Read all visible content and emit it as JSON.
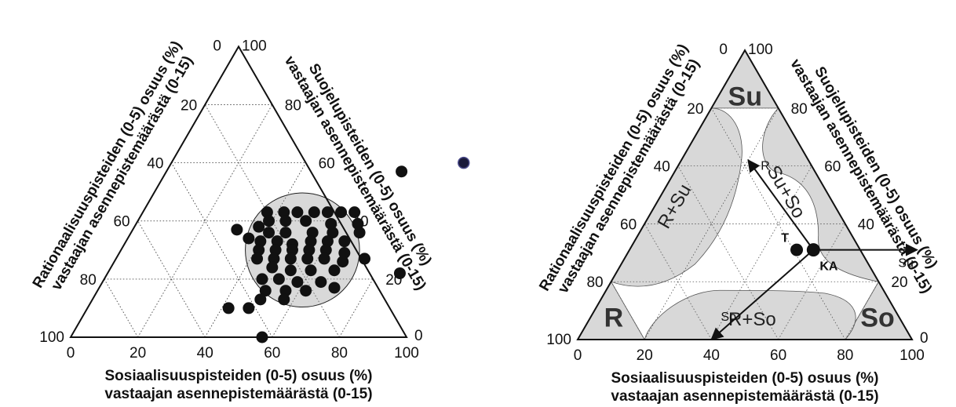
{
  "chart_data": [
    {
      "type": "ternary-scatter",
      "axes": {
        "bottom": {
          "title_line1": "Sosiaalisuuspisteiden (0-5) osuus (%)",
          "title_line2": "vastaajan asennepistemäärästä (0-15)",
          "ticks": [
            "0",
            "20",
            "40",
            "60",
            "80",
            "100"
          ]
        },
        "right": {
          "title_line1": "Suojelupisteiden (0-5) osuus (%)",
          "title_line2": "vastaajan asennepistemäärästä (0-15)",
          "ticks": [
            "0",
            "20",
            "40",
            "60",
            "80",
            "100"
          ]
        },
        "left": {
          "title_line1": "Rationaalisuuspisteiden (0-5) osuus (%)",
          "title_line2": "vastaajan asennepistemäärästä (0-15)",
          "ticks": [
            "0",
            "20",
            "40",
            "60",
            "80",
            "100"
          ]
        }
      },
      "points": [
        {
          "so": 57,
          "su": 0
        },
        {
          "so": 87,
          "su": 22
        },
        {
          "so": 70,
          "su": 57
        },
        {
          "so": 37,
          "su": 43
        },
        {
          "so": 37,
          "su": 38
        },
        {
          "so": 42,
          "su": 43
        },
        {
          "so": 46,
          "su": 43
        },
        {
          "so": 51,
          "su": 43
        },
        {
          "so": 55,
          "su": 43
        },
        {
          "so": 59,
          "su": 43
        },
        {
          "so": 63,
          "su": 43
        },
        {
          "so": 31,
          "su": 37
        },
        {
          "so": 39,
          "su": 40
        },
        {
          "so": 44,
          "su": 40
        },
        {
          "so": 50,
          "su": 40
        },
        {
          "so": 58,
          "su": 39
        },
        {
          "so": 66,
          "su": 39
        },
        {
          "so": 36,
          "su": 34
        },
        {
          "so": 41,
          "su": 36
        },
        {
          "so": 46,
          "su": 36
        },
        {
          "so": 54,
          "su": 36
        },
        {
          "so": 60,
          "su": 36
        },
        {
          "so": 68,
          "su": 36
        },
        {
          "so": 40,
          "su": 33
        },
        {
          "so": 45,
          "su": 33
        },
        {
          "so": 50,
          "su": 32
        },
        {
          "so": 55,
          "su": 33
        },
        {
          "so": 60,
          "su": 33
        },
        {
          "so": 65,
          "su": 33
        },
        {
          "so": 41,
          "su": 30
        },
        {
          "so": 46,
          "su": 30
        },
        {
          "so": 51,
          "su": 30
        },
        {
          "so": 56,
          "su": 30
        },
        {
          "so": 61,
          "su": 30
        },
        {
          "so": 67,
          "su": 29
        },
        {
          "so": 42,
          "su": 27
        },
        {
          "so": 47,
          "su": 27
        },
        {
          "so": 52,
          "su": 27
        },
        {
          "so": 57,
          "su": 27
        },
        {
          "so": 62,
          "su": 27
        },
        {
          "so": 68,
          "su": 26
        },
        {
          "so": 74,
          "su": 27
        },
        {
          "so": 48,
          "su": 24
        },
        {
          "so": 54,
          "su": 23
        },
        {
          "so": 60,
          "su": 23
        },
        {
          "so": 67,
          "su": 23
        },
        {
          "so": 47,
          "su": 20
        },
        {
          "so": 52,
          "su": 20
        },
        {
          "so": 58,
          "su": 19
        },
        {
          "so": 65,
          "su": 19
        },
        {
          "so": 50,
          "su": 16
        },
        {
          "so": 56,
          "su": 16
        },
        {
          "so": 62,
          "su": 16
        },
        {
          "so": 70,
          "su": 17
        },
        {
          "so": 50,
          "su": 13
        },
        {
          "so": 57,
          "su": 13
        },
        {
          "so": 42,
          "su": 10
        },
        {
          "so": 48,
          "su": 10
        }
      ],
      "highlighted_point": {
        "so": 87,
        "su": 60
      },
      "cluster_circle": {
        "center_so": 54,
        "center_su": 30,
        "radius_percent": 17
      }
    },
    {
      "type": "ternary-diagram",
      "axes": {
        "bottom": {
          "title_line1": "Sosiaalisuuspisteiden (0-5) osuus (%)",
          "title_line2": "vastaajan asennepistemäärästä (0-15)",
          "ticks": [
            "0",
            "20",
            "40",
            "60",
            "80",
            "100"
          ]
        },
        "right": {
          "title_line1": "Suojelupisteiden (0-5) osuus (%)",
          "title_line2": "vastaajan asennepistemäärästä (0-15)",
          "ticks": [
            "0",
            "20",
            "40",
            "60",
            "80",
            "100"
          ]
        },
        "left": {
          "title_line1": "Rationaalisuuspisteiden (0-5) osuus (%)",
          "title_line2": "vastaajan asennepistemäärästä (0-15)",
          "ticks": [
            "0",
            "20",
            "40",
            "60",
            "80",
            "100"
          ]
        }
      },
      "zones": [
        {
          "label": "Su",
          "kind": "pure"
        },
        {
          "label": "R",
          "kind": "pure"
        },
        {
          "label": "So",
          "kind": "pure"
        },
        {
          "label": "R+Su",
          "kind": "mixed"
        },
        {
          "label": "Su+So",
          "kind": "mixed"
        },
        {
          "label": "R+So",
          "kind": "mixed"
        }
      ],
      "points": [
        {
          "label": "T",
          "so": 50,
          "su": 31
        },
        {
          "label": "KA",
          "so": 55,
          "su": 31
        }
      ],
      "arrows": [
        {
          "label": "R",
          "to_so": 20,
          "to_su": 62
        },
        {
          "label": "Su",
          "to_so": 86,
          "to_su": 31
        },
        {
          "label": "So",
          "to_so": 40,
          "to_su": 0
        }
      ]
    }
  ]
}
